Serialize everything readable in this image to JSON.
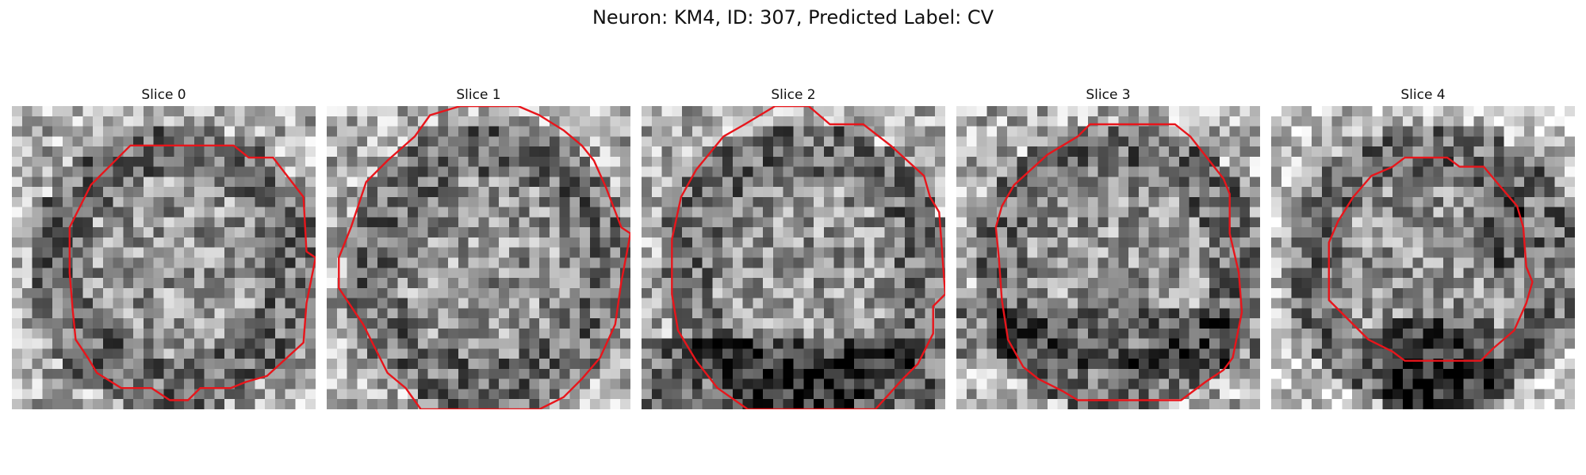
{
  "figure": {
    "title": "Neuron: KM4, ID: 307, Predicted Label: CV"
  },
  "colors": {
    "contour": "#e8151b",
    "grayscale": "gray"
  },
  "panels": [
    {
      "title": "Slice 0"
    },
    {
      "title": "Slice 1"
    },
    {
      "title": "Slice 2"
    },
    {
      "title": "Slice 3"
    },
    {
      "title": "Slice 4"
    }
  ]
}
